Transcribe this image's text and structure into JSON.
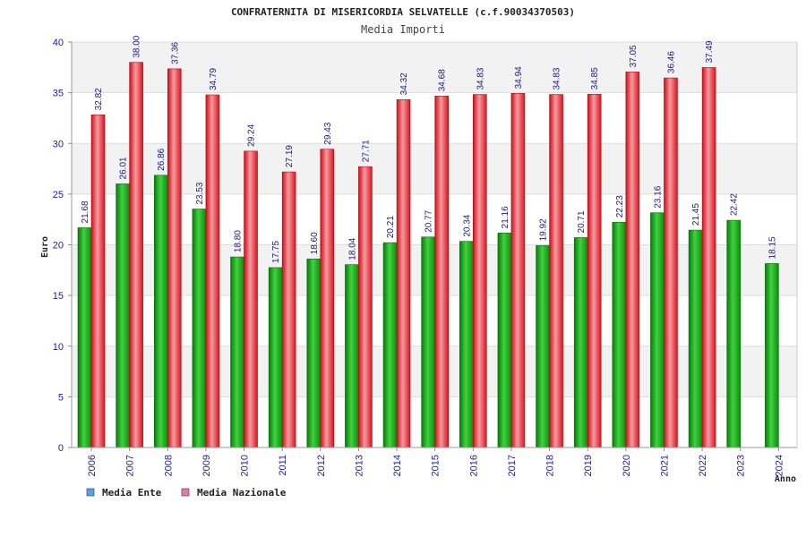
{
  "chart_data": {
    "type": "bar",
    "title": "CONFRATERNITA DI MISERICORDIA SELVATELLE (c.f.90034370503)",
    "subtitle": "Media Importi",
    "xlabel": "Anno",
    "ylabel": "Euro",
    "ylim": [
      0,
      40
    ],
    "yticks": [
      0,
      5,
      10,
      15,
      20,
      25,
      30,
      35,
      40
    ],
    "grid": true,
    "legend_position": "bottom-left",
    "categories": [
      "2006",
      "2007",
      "2008",
      "2009",
      "2010",
      "2011",
      "2012",
      "2013",
      "2014",
      "2015",
      "2016",
      "2017",
      "2018",
      "2019",
      "2020",
      "2021",
      "2022",
      "2023",
      "2024"
    ],
    "series": [
      {
        "name": "Media Ente",
        "color": "#1fa81f",
        "legend_color": "#5aa0e8",
        "values": [
          21.68,
          26.01,
          26.86,
          23.53,
          18.8,
          17.75,
          18.6,
          18.04,
          20.21,
          20.77,
          20.34,
          21.16,
          19.92,
          20.71,
          22.23,
          23.16,
          21.45,
          22.42,
          18.15
        ],
        "labels": [
          "21.68",
          "26.01",
          "26.86",
          "23.53",
          "18.80",
          "17.75",
          "18.60",
          "18.04",
          "20.21",
          "20.77",
          "20.34",
          "21.16",
          "19.92",
          "20.71",
          "22.23",
          "23.16",
          "21.45",
          "22.42",
          "18.15"
        ]
      },
      {
        "name": "Media Nazionale",
        "color": "#e8202a",
        "legend_color": "#e07ab0",
        "values": [
          32.82,
          38.0,
          37.36,
          34.79,
          29.24,
          27.19,
          29.43,
          27.71,
          34.32,
          34.68,
          34.83,
          34.94,
          34.83,
          34.85,
          37.05,
          36.46,
          37.49,
          null,
          null
        ],
        "labels": [
          "32.82",
          "38.00",
          "37.36",
          "34.79",
          "29.24",
          "27.19",
          "29.43",
          "27.71",
          "34.32",
          "34.68",
          "34.83",
          "34.94",
          "34.83",
          "34.85",
          "37.05",
          "36.46",
          "37.49",
          null,
          null
        ]
      }
    ]
  }
}
